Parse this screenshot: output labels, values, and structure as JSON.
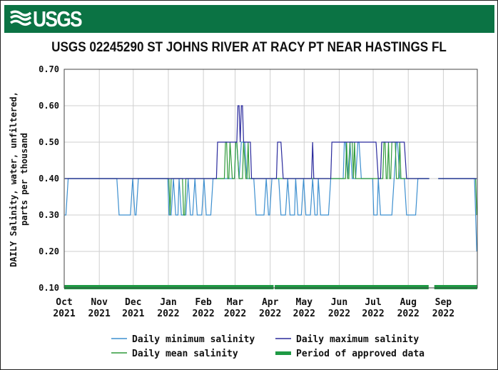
{
  "header": {
    "logo_text": "USGS"
  },
  "chart_data": {
    "type": "line",
    "title": "USGS 02245290 ST JOHNS RIVER AT RACY PT NEAR HASTINGS FL",
    "ylabel_lines": [
      "DAILY Salinity, water, unfiltered,",
      "parts per thousand"
    ],
    "xlabel": "",
    "xlim": [
      "2021-10-01",
      "2022-09-30"
    ],
    "ylim": [
      0.1,
      0.7
    ],
    "yticks": [
      "0.10",
      "0.20",
      "0.30",
      "0.40",
      "0.50",
      "0.60",
      "0.70"
    ],
    "xticks": [
      {
        "date": "2021-10-01",
        "month": "Oct",
        "year": "2021"
      },
      {
        "date": "2021-11-01",
        "month": "Nov",
        "year": "2021"
      },
      {
        "date": "2021-12-01",
        "month": "Dec",
        "year": "2021"
      },
      {
        "date": "2022-01-01",
        "month": "Jan",
        "year": "2022"
      },
      {
        "date": "2022-02-01",
        "month": "Feb",
        "year": "2022"
      },
      {
        "date": "2022-03-01",
        "month": "Mar",
        "year": "2022"
      },
      {
        "date": "2022-04-01",
        "month": "Apr",
        "year": "2022"
      },
      {
        "date": "2022-05-01",
        "month": "May",
        "year": "2022"
      },
      {
        "date": "2022-06-01",
        "month": "Jun",
        "year": "2022"
      },
      {
        "date": "2022-07-01",
        "month": "Jul",
        "year": "2022"
      },
      {
        "date": "2022-08-01",
        "month": "Aug",
        "year": "2022"
      },
      {
        "date": "2022-09-01",
        "month": "Sep",
        "year": "2022"
      }
    ],
    "grid": true,
    "legend_placement": "bottom",
    "series": [
      {
        "name": "Daily minimum salinity",
        "color": "#3d8fcf",
        "runs": [
          [
            "2021-10-01",
            "2021-10-02",
            0.3
          ],
          [
            "2021-10-04",
            "2021-11-16",
            0.4
          ],
          [
            "2021-11-18",
            "2021-11-28",
            0.3
          ],
          [
            "2021-11-30",
            "2021-11-30",
            0.4
          ],
          [
            "2021-12-02",
            "2021-12-03",
            0.3
          ],
          [
            "2021-12-05",
            "2021-12-31",
            0.4
          ],
          [
            "2022-01-01",
            "2022-01-03",
            0.3
          ],
          [
            "2022-01-05",
            "2022-01-05",
            0.4
          ],
          [
            "2022-01-07",
            "2022-01-09",
            0.3
          ],
          [
            "2022-01-10",
            "2022-01-10",
            0.4
          ],
          [
            "2022-01-12",
            "2022-01-16",
            0.3
          ],
          [
            "2022-01-18",
            "2022-01-18",
            0.4
          ],
          [
            "2022-01-20",
            "2022-01-22",
            0.3
          ],
          [
            "2022-01-24",
            "2022-01-24",
            0.4
          ],
          [
            "2022-01-26",
            "2022-01-30",
            0.3
          ],
          [
            "2022-02-01",
            "2022-02-01",
            0.4
          ],
          [
            "2022-02-03",
            "2022-02-07",
            0.3
          ],
          [
            "2022-02-09",
            "2022-02-28",
            0.4
          ],
          [
            "2022-03-01",
            "2022-03-02",
            0.5
          ],
          [
            "2022-03-04",
            "2022-03-04",
            0.4
          ],
          [
            "2022-03-06",
            "2022-03-09",
            0.5
          ],
          [
            "2022-03-11",
            "2022-03-17",
            0.4
          ],
          [
            "2022-03-19",
            "2022-03-26",
            0.3
          ],
          [
            "2022-03-28",
            "2022-03-28",
            0.4
          ],
          [
            "2022-03-30",
            "2022-03-31",
            0.3
          ],
          [
            "2022-04-02",
            "2022-04-08",
            0.4
          ],
          [
            "2022-04-10",
            "2022-04-14",
            0.3
          ],
          [
            "2022-04-16",
            "2022-04-16",
            0.4
          ],
          [
            "2022-04-18",
            "2022-04-22",
            0.3
          ],
          [
            "2022-04-23",
            "2022-04-23",
            0.4
          ],
          [
            "2022-04-25",
            "2022-04-28",
            0.3
          ],
          [
            "2022-04-30",
            "2022-04-30",
            0.4
          ],
          [
            "2022-05-02",
            "2022-05-06",
            0.3
          ],
          [
            "2022-05-08",
            "2022-05-08",
            0.4
          ],
          [
            "2022-05-10",
            "2022-05-12",
            0.3
          ],
          [
            "2022-05-13",
            "2022-05-13",
            0.4
          ],
          [
            "2022-05-15",
            "2022-05-22",
            0.3
          ],
          [
            "2022-05-24",
            "2022-06-04",
            0.4
          ],
          [
            "2022-06-05",
            "2022-06-06",
            0.5
          ],
          [
            "2022-06-08",
            "2022-06-08",
            0.4
          ],
          [
            "2022-06-10",
            "2022-06-10",
            0.5
          ],
          [
            "2022-06-12",
            "2022-06-15",
            0.4
          ],
          [
            "2022-06-17",
            "2022-06-18",
            0.5
          ],
          [
            "2022-06-20",
            "2022-06-30",
            0.4
          ],
          [
            "2022-07-01",
            "2022-07-04",
            0.3
          ],
          [
            "2022-07-05",
            "2022-07-05",
            0.4
          ],
          [
            "2022-07-07",
            "2022-07-17",
            0.3
          ],
          [
            "2022-07-19",
            "2022-07-19",
            0.4
          ],
          [
            "2022-07-21",
            "2022-07-22",
            0.5
          ],
          [
            "2022-07-24",
            "2022-07-28",
            0.4
          ],
          [
            "2022-07-30",
            "2022-08-07",
            0.3
          ],
          [
            "2022-08-09",
            "2022-08-19",
            0.4
          ],
          [
            "2022-08-20",
            "2022-08-26",
            null
          ],
          [
            "2022-08-27",
            "2022-09-28",
            0.4
          ],
          [
            "2022-09-30",
            "2022-09-30",
            0.2
          ]
        ]
      },
      {
        "name": "Daily mean salinity",
        "color": "#2f9a3a",
        "runs": [
          [
            "2021-10-01",
            "2022-01-01",
            0.4
          ],
          [
            "2022-01-02",
            "2022-01-02",
            0.3
          ],
          [
            "2022-01-03",
            "2022-01-13",
            0.4
          ],
          [
            "2022-01-14",
            "2022-01-15",
            0.3
          ],
          [
            "2022-01-16",
            "2022-02-19",
            0.4
          ],
          [
            "2022-02-20",
            "2022-02-21",
            0.5
          ],
          [
            "2022-02-22",
            "2022-02-23",
            0.4
          ],
          [
            "2022-02-24",
            "2022-02-24",
            0.5
          ],
          [
            "2022-02-26",
            "2022-02-28",
            0.4
          ],
          [
            "2022-03-01",
            "2022-03-02",
            0.5
          ],
          [
            "2022-03-04",
            "2022-03-07",
            0.4
          ],
          [
            "2022-03-08",
            "2022-03-08",
            0.5
          ],
          [
            "2022-03-10",
            "2022-03-11",
            0.4
          ],
          [
            "2022-03-12",
            "2022-03-12",
            0.5
          ],
          [
            "2022-03-13",
            "2022-06-06",
            0.4
          ],
          [
            "2022-06-07",
            "2022-06-07",
            0.5
          ],
          [
            "2022-06-08",
            "2022-06-09",
            0.4
          ],
          [
            "2022-06-10",
            "2022-06-12",
            0.5
          ],
          [
            "2022-06-13",
            "2022-06-13",
            0.4
          ],
          [
            "2022-06-14",
            "2022-06-14",
            0.5
          ],
          [
            "2022-06-15",
            "2022-07-09",
            0.4
          ],
          [
            "2022-07-10",
            "2022-07-11",
            0.5
          ],
          [
            "2022-07-12",
            "2022-07-13",
            0.4
          ],
          [
            "2022-07-14",
            "2022-07-14",
            0.5
          ],
          [
            "2022-07-15",
            "2022-07-16",
            0.4
          ],
          [
            "2022-07-17",
            "2022-07-20",
            0.5
          ],
          [
            "2022-07-21",
            "2022-07-23",
            0.4
          ],
          [
            "2022-07-24",
            "2022-07-24",
            0.5
          ],
          [
            "2022-07-25",
            "2022-08-19",
            0.4
          ],
          [
            "2022-08-20",
            "2022-08-26",
            null
          ],
          [
            "2022-08-27",
            "2022-09-29",
            0.4
          ],
          [
            "2022-09-30",
            "2022-09-30",
            0.3
          ]
        ]
      },
      {
        "name": "Daily maximum salinity",
        "color": "#2a2a9c",
        "runs": [
          [
            "2021-10-01",
            "2022-02-12",
            0.4
          ],
          [
            "2022-02-13",
            "2022-03-02",
            0.5
          ],
          [
            "2022-03-03",
            "2022-03-04",
            0.6
          ],
          [
            "2022-03-05",
            "2022-03-05",
            0.5
          ],
          [
            "2022-03-06",
            "2022-03-07",
            0.6
          ],
          [
            "2022-03-08",
            "2022-03-14",
            0.5
          ],
          [
            "2022-03-15",
            "2022-04-06",
            0.4
          ],
          [
            "2022-04-07",
            "2022-04-10",
            0.5
          ],
          [
            "2022-04-12",
            "2022-05-07",
            0.4
          ],
          [
            "2022-05-08",
            "2022-05-08",
            0.5
          ],
          [
            "2022-05-09",
            "2022-05-24",
            0.4
          ],
          [
            "2022-05-25",
            "2022-07-03",
            0.5
          ],
          [
            "2022-07-05",
            "2022-07-07",
            0.4
          ],
          [
            "2022-07-08",
            "2022-07-28",
            0.5
          ],
          [
            "2022-07-30",
            "2022-08-19",
            0.4
          ],
          [
            "2022-08-20",
            "2022-08-26",
            null
          ],
          [
            "2022-08-27",
            "2022-09-30",
            0.4
          ]
        ]
      }
    ],
    "approved_periods": {
      "name": "Period of approved data",
      "color": "#1e9a44",
      "ranges": [
        [
          "2021-10-01",
          "2022-04-03"
        ],
        [
          "2022-04-05",
          "2022-08-18"
        ],
        [
          "2022-08-24",
          "2022-09-30"
        ]
      ]
    },
    "legend": [
      {
        "label": "Daily minimum salinity",
        "color": "#3d8fcf",
        "style": "line"
      },
      {
        "label": "Daily maximum salinity",
        "color": "#2a2a9c",
        "style": "line"
      },
      {
        "label": "Daily mean salinity",
        "color": "#2f9a3a",
        "style": "line"
      },
      {
        "label": "Period of approved data",
        "color": "#1e9a44",
        "style": "bar"
      }
    ]
  }
}
